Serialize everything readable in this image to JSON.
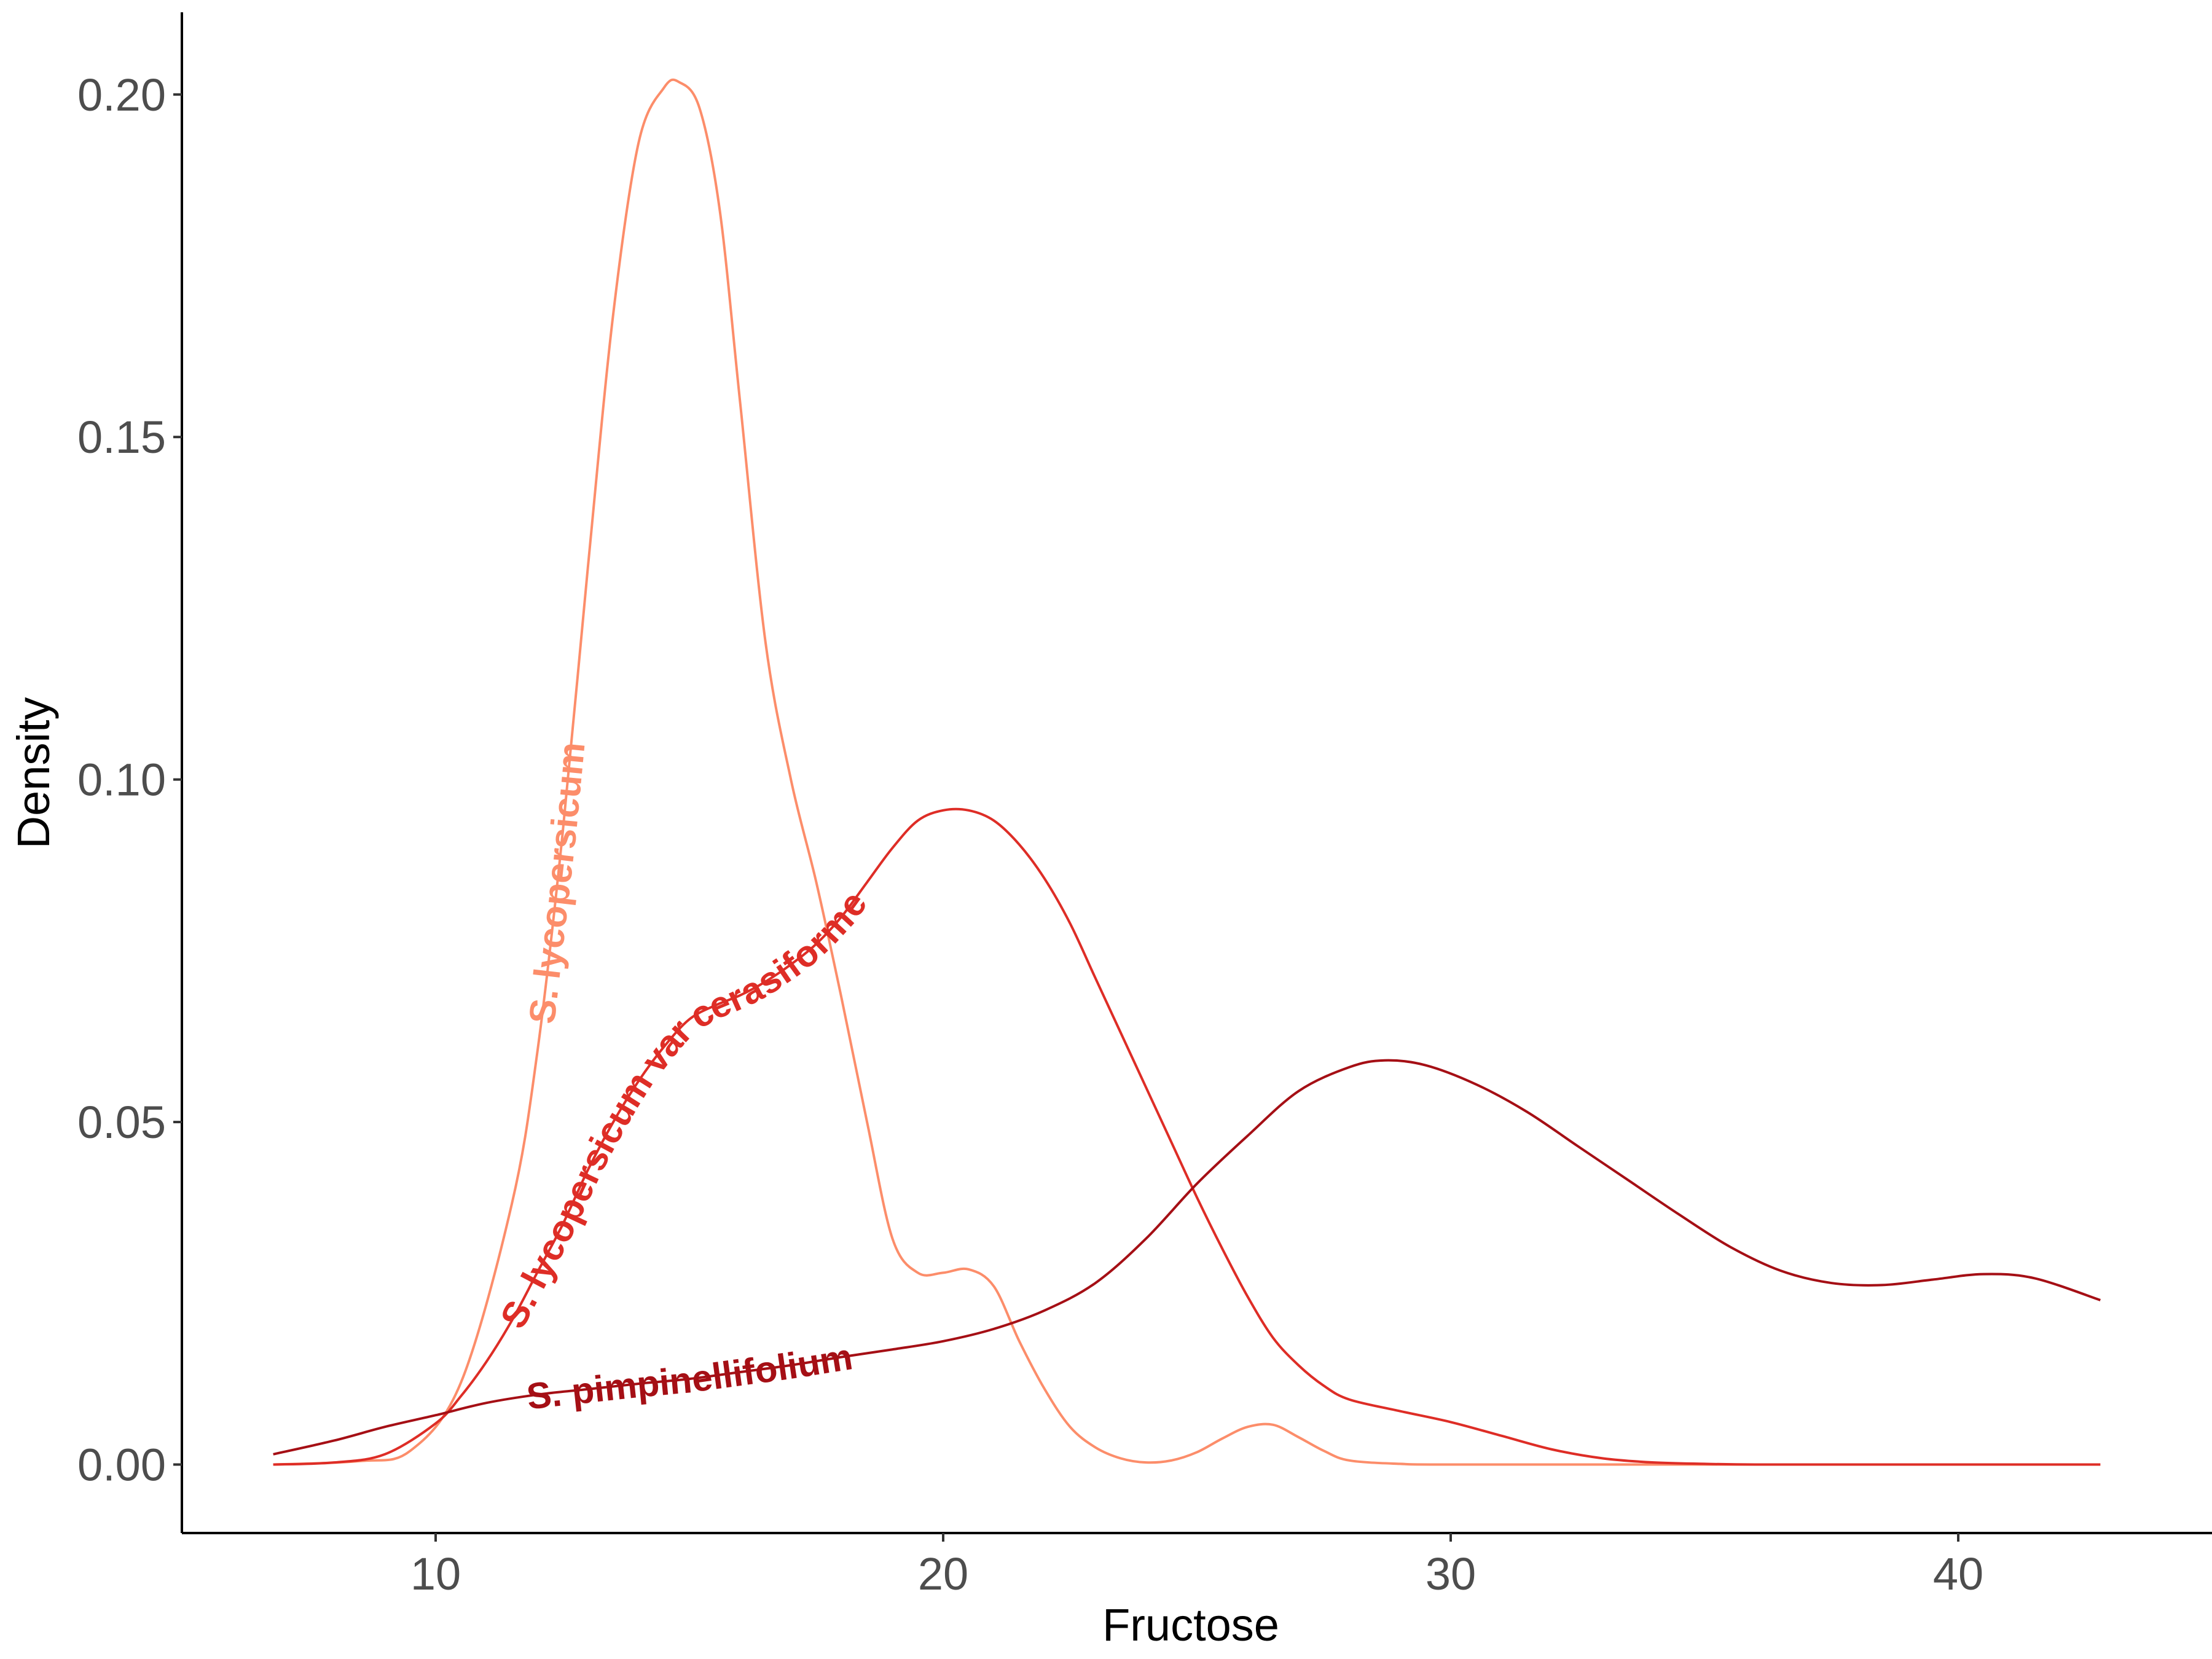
{
  "chart_data": {
    "type": "line",
    "title": "",
    "xlabel": "Fructose",
    "ylabel": "Density",
    "xlim": [
      5,
      45
    ],
    "ylim": [
      -0.01,
      0.212
    ],
    "x_ticks": [
      10,
      20,
      30,
      40
    ],
    "x_tick_labels": [
      "10",
      "20",
      "30",
      "40"
    ],
    "y_ticks": [
      0.0,
      0.05,
      0.1,
      0.15,
      0.2
    ],
    "y_tick_labels": [
      "0.00",
      "0.05",
      "0.10",
      "0.15",
      "0.20"
    ],
    "grid": false,
    "legend": "none",
    "series": [
      {
        "name": "S. lycopersicum",
        "color": "#fc8d6a",
        "x": [
          6.8,
          8.5,
          9.5,
          10.5,
          11.5,
          12,
          12.5,
          13,
          13.5,
          14,
          14.5,
          14.8,
          15.2,
          15.6,
          16,
          16.5,
          17,
          17.5,
          18,
          18.5,
          19,
          19.5,
          20,
          20.5,
          21,
          21.5,
          22,
          22.5,
          23,
          23.5,
          24,
          24.5,
          25,
          25.5,
          26,
          26.5,
          27,
          27.5,
          28,
          29,
          30,
          35,
          40,
          42.8
        ],
        "y": [
          0.0,
          0.0005,
          0.002,
          0.012,
          0.038,
          0.06,
          0.092,
          0.131,
          0.168,
          0.193,
          0.201,
          0.2018,
          0.198,
          0.183,
          0.155,
          0.12,
          0.1,
          0.085,
          0.068,
          0.05,
          0.033,
          0.028,
          0.028,
          0.0285,
          0.026,
          0.018,
          0.011,
          0.0055,
          0.0025,
          0.0009,
          0.0003,
          0.0006,
          0.0018,
          0.0038,
          0.0055,
          0.0058,
          0.004,
          0.002,
          0.0006,
          0.0001,
          0.0,
          0.0,
          0.0,
          0.0
        ]
      },
      {
        "name": "S. lycopersicum var cerasiforme",
        "color": "#de2d26",
        "x": [
          6.8,
          8,
          9,
          10,
          10.5,
          11,
          11.5,
          12,
          12.5,
          13,
          13.5,
          14,
          14.5,
          15,
          15.5,
          16,
          16.5,
          17,
          17.5,
          18,
          18.5,
          19,
          19.5,
          20,
          20.5,
          21,
          21.5,
          22,
          22.5,
          23,
          23.5,
          24,
          24.5,
          25,
          25.5,
          26,
          26.5,
          27,
          27.5,
          28,
          29,
          30,
          31,
          32,
          33,
          34,
          35,
          36,
          38,
          40,
          42.8
        ],
        "y": [
          0.0,
          0.0003,
          0.0015,
          0.006,
          0.01,
          0.015,
          0.021,
          0.028,
          0.035,
          0.043,
          0.05,
          0.056,
          0.061,
          0.065,
          0.067,
          0.0685,
          0.0705,
          0.073,
          0.076,
          0.08,
          0.085,
          0.09,
          0.094,
          0.0955,
          0.0955,
          0.094,
          0.0905,
          0.0855,
          0.079,
          0.071,
          0.063,
          0.055,
          0.047,
          0.039,
          0.0315,
          0.0245,
          0.0185,
          0.0145,
          0.0115,
          0.0095,
          0.0078,
          0.0062,
          0.0042,
          0.0022,
          0.0009,
          0.0003,
          0.0001,
          0.0,
          0.0,
          0.0,
          0.0
        ]
      },
      {
        "name": "S. pimpinellifolium",
        "color": "#a50f15",
        "x": [
          6.8,
          8,
          9,
          10,
          11,
          12,
          13,
          14,
          15,
          16,
          17,
          18,
          19,
          20,
          21,
          22,
          23,
          24,
          25,
          26,
          27,
          28,
          28.7,
          29.5,
          30.5,
          31.5,
          32.5,
          33.5,
          34.5,
          35.5,
          36.5,
          37.5,
          38.5,
          39.5,
          40.5,
          41.5,
          42.8
        ],
        "y": [
          0.0015,
          0.0035,
          0.0055,
          0.0072,
          0.009,
          0.0102,
          0.011,
          0.0118,
          0.0125,
          0.0135,
          0.0145,
          0.0157,
          0.0168,
          0.018,
          0.0198,
          0.0225,
          0.0265,
          0.033,
          0.041,
          0.048,
          0.0545,
          0.058,
          0.059,
          0.0583,
          0.0555,
          0.0515,
          0.0465,
          0.0415,
          0.0365,
          0.0318,
          0.0283,
          0.0265,
          0.0262,
          0.027,
          0.0278,
          0.0272,
          0.024
        ]
      }
    ]
  }
}
